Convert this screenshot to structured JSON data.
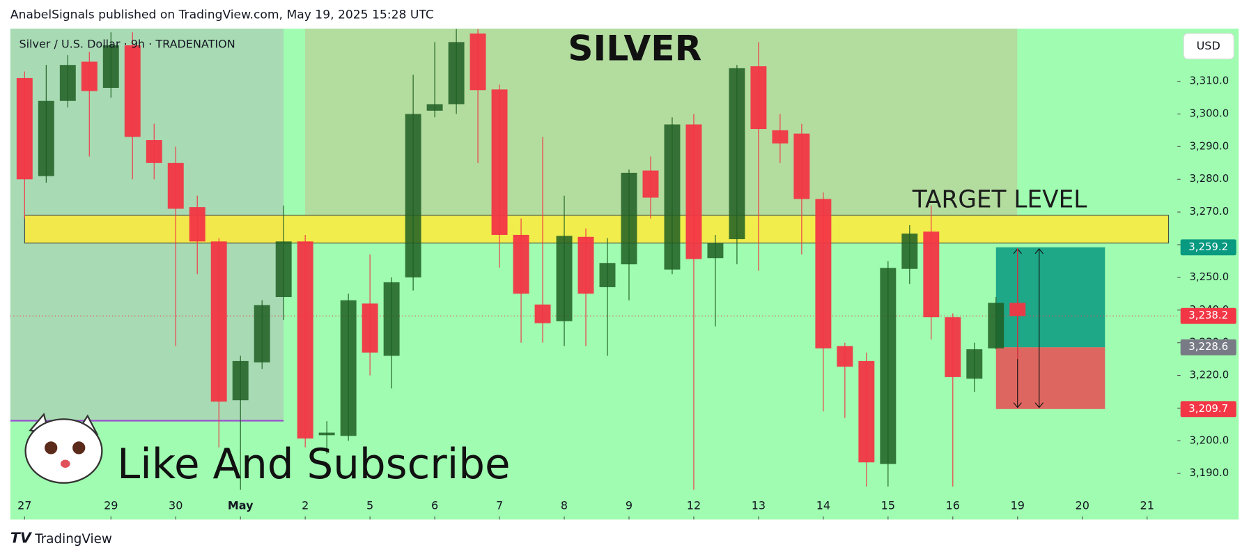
{
  "header": "AnabelSignals published on TradingView.com, May 19, 2025 15:28 UTC",
  "footer": "TradingView",
  "chart_data": {
    "type": "candlestick",
    "title": "SILVER",
    "symbol": "Silver / U.S. Dollar · 9h · TRADENATION",
    "currency": "USD",
    "overlay_text": "Like And Subscribe",
    "up_color": "#1f5e23",
    "down_color": "#f23645",
    "series": [
      {
        "open": [
          3311,
          3281,
          3304,
          3316,
          3308,
          3321,
          3292,
          3285,
          3271.5,
          3261,
          3212.4,
          3224,
          3244,
          3261,
          3201.7,
          3201.5,
          3242,
          3226,
          3250,
          3301,
          3303,
          3324.6,
          3307.5,
          3263,
          3241.7,
          3236.6,
          3262.4,
          3247,
          3254,
          3282.7,
          3252.4,
          3296.8,
          3255.9,
          3261.7,
          3314.6,
          3295,
          3294,
          3274,
          3229,
          3224.4,
          3192.9,
          3252.6,
          3264,
          3237.8,
          3219,
          3228.3,
          3242.2
        ],
        "high": [
          3313,
          3315,
          3318,
          3319,
          3325,
          3325,
          3297,
          3290,
          3275,
          3262,
          3226,
          3243,
          3272,
          3263,
          3206,
          3245,
          3257,
          3250,
          3312,
          3322,
          3326,
          3326,
          3309,
          3268,
          3293,
          3275,
          3265,
          3262,
          3283,
          3287,
          3299,
          3300,
          3263,
          3315,
          3322,
          3300,
          3297,
          3276,
          3230,
          3227,
          3255,
          3266,
          3272,
          3239,
          3230,
          3244,
          3259
        ],
        "low": [
          3268,
          3279,
          3302,
          3287,
          3305,
          3280,
          3280,
          3229,
          3251,
          3198,
          3185,
          3222,
          3237,
          3198,
          3196,
          3200,
          3220,
          3216,
          3246,
          3299,
          3300,
          3285,
          3253,
          3230,
          3230,
          3229,
          3229,
          3226,
          3243,
          3268,
          3251,
          3185,
          3235,
          3254,
          3252,
          3285,
          3257,
          3209,
          3207,
          3186,
          3186,
          3248,
          3231,
          3186,
          3215,
          3228,
          3225
        ],
        "close": [
          3280,
          3304,
          3315,
          3307,
          3321,
          3293,
          3285,
          3271,
          3261,
          3212,
          3224.4,
          3241.5,
          3261,
          3200.7,
          3202.5,
          3243,
          3227,
          3248.5,
          3300,
          3303,
          3322,
          3307.3,
          3263,
          3245,
          3236,
          3262.7,
          3245,
          3254.4,
          3282,
          3274.4,
          3296.8,
          3255.6,
          3260.5,
          3314,
          3295.4,
          3291,
          3274,
          3228.3,
          3222.7,
          3193.4,
          3252.9,
          3263.4,
          3237.8,
          3219.5,
          3228,
          3242.2,
          3238.2
        ]
      }
    ],
    "xlim": [
      -0.66,
      53.4
    ],
    "xticks": [
      {
        "value": 0,
        "label": "27"
      },
      {
        "value": 4,
        "label": "29"
      },
      {
        "value": 7,
        "label": "30"
      },
      {
        "value": 10,
        "label": "May"
      },
      {
        "value": 13,
        "label": "2"
      },
      {
        "value": 16,
        "label": "5"
      },
      {
        "value": 19,
        "label": "6"
      },
      {
        "value": 22,
        "label": "7"
      },
      {
        "value": 25,
        "label": "8"
      },
      {
        "value": 28,
        "label": "9"
      },
      {
        "value": 31,
        "label": "12"
      },
      {
        "value": 34,
        "label": "13"
      },
      {
        "value": 37,
        "label": "14"
      },
      {
        "value": 40,
        "label": "15"
      },
      {
        "value": 43,
        "label": "16"
      },
      {
        "value": 46,
        "label": "19"
      },
      {
        "value": 49,
        "label": "20"
      },
      {
        "value": 52,
        "label": "21"
      }
    ],
    "ylim": [
      3175.9,
      3326.1
    ],
    "yticks": [
      {
        "value": 3190,
        "label": "3,190.0"
      },
      {
        "value": 3200,
        "label": "3,200.0"
      },
      {
        "value": 3210,
        "label": "3,210.0"
      },
      {
        "value": 3220,
        "label": "3,220.0"
      },
      {
        "value": 3230,
        "label": "3,230.0"
      },
      {
        "value": 3240,
        "label": "3,240.0"
      },
      {
        "value": 3250,
        "label": "3,250.0"
      },
      {
        "value": 3260,
        "label": "3,260.0"
      },
      {
        "value": 3270,
        "label": "3,270.0"
      },
      {
        "value": 3280,
        "label": "3,280.0"
      },
      {
        "value": 3290,
        "label": "3,290.0"
      },
      {
        "value": 3300,
        "label": "3,300.0"
      },
      {
        "value": 3310,
        "label": "3,310.0"
      }
    ],
    "target_zone": {
      "label": "TARGET LEVEL",
      "low": 3260.5,
      "high": 3269,
      "color": "#ffeb3b"
    },
    "price_labels": [
      {
        "value": 3259.2,
        "label": "3,259.2",
        "color": "#089981"
      },
      {
        "value": 3238.2,
        "label": "3,238.2",
        "color": "#f23645"
      },
      {
        "value": 3228.6,
        "label": "3,228.6",
        "color": "#787b86"
      },
      {
        "value": 3209.7,
        "label": "3,209.7",
        "color": "#f23645"
      }
    ]
  }
}
